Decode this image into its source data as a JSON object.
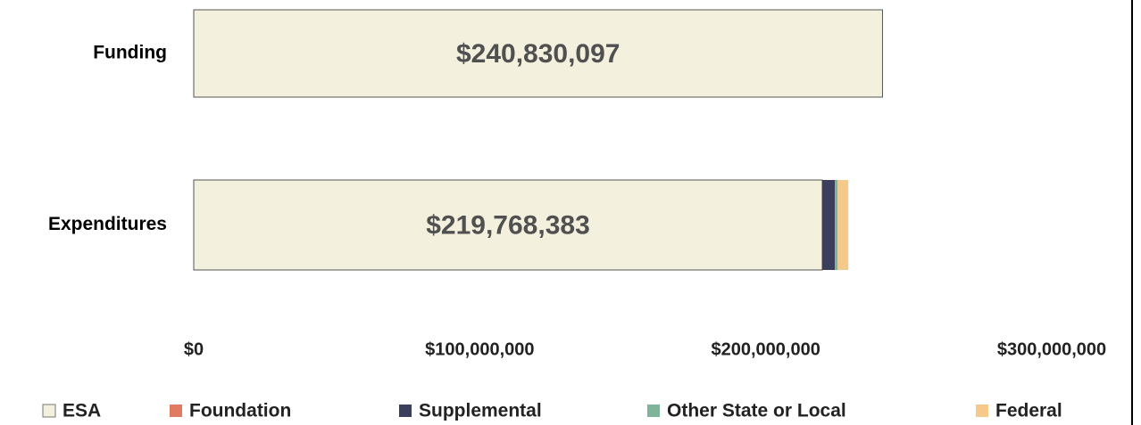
{
  "chart_data": {
    "type": "stacked-bar-horizontal",
    "categories": [
      "Funding",
      "Expenditures"
    ],
    "series": [
      {
        "name": "ESA",
        "color": "#f3f1de",
        "values": [
          240830097,
          219768383
        ],
        "value_labels": [
          "$240,830,097",
          "$219,768,383"
        ]
      },
      {
        "name": "Foundation",
        "color": "#e07b62",
        "values": [
          0,
          0
        ]
      },
      {
        "name": "Supplemental",
        "color": "#3b3f5c",
        "values": [
          0,
          4400000
        ]
      },
      {
        "name": "Other State or Local",
        "color": "#7fb39a",
        "values": [
          0,
          1000000
        ]
      },
      {
        "name": "Federal",
        "color": "#f5c98a",
        "values": [
          0,
          3700000
        ]
      }
    ],
    "xlim": [
      0,
      300000000
    ],
    "xticks": [
      {
        "value": 0,
        "label": "$0"
      },
      {
        "value": 100000000,
        "label": "$100,000,000"
      },
      {
        "value": 200000000,
        "label": "$200,000,000"
      },
      {
        "value": 300000000,
        "label": "$300,000,000"
      }
    ]
  }
}
